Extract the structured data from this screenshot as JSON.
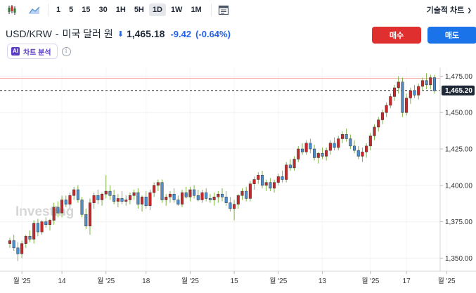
{
  "toolbar": {
    "timeframes": [
      "1",
      "5",
      "15",
      "30",
      "1H",
      "5H",
      "1D",
      "1W",
      "1M"
    ],
    "active_timeframe": "1D",
    "technical_chart_label": "기술적 차트"
  },
  "header": {
    "pair": "USD/KRW",
    "separator": "-",
    "name": "미국 달러 원",
    "price": "1,465.18",
    "change": "-9.42",
    "change_pct": "(-0.64%)",
    "direction": "down"
  },
  "buttons": {
    "buy": "매수",
    "sell": "매도"
  },
  "ai": {
    "badge": "AI",
    "label": "차트 분석"
  },
  "watermark": "Investing",
  "colors": {
    "up": "#c8282a",
    "down": "#4a8fd0",
    "accent_blue": "#2563eb",
    "buy": "#e02f2f",
    "sell": "#1a73e8"
  },
  "chart_data": {
    "type": "candlestick",
    "ylim": [
      1341,
      1481
    ],
    "yticks": [
      1350,
      1375,
      1400,
      1425,
      1450,
      1475
    ],
    "ytick_labels": [
      "1,350.00",
      "1,375.00",
      "1,400.00",
      "1,425.00",
      "1,450.00",
      "1,475.00"
    ],
    "xtick_labels": [
      "월 '25",
      "14",
      "월 '25",
      "18",
      "월 '25",
      "15",
      "월 '25",
      "13",
      "월 '25",
      "17",
      "월 '25"
    ],
    "xtick_index": [
      3,
      13,
      24,
      34,
      45,
      56,
      67,
      78,
      90,
      99,
      109
    ],
    "current_price": 1465.2,
    "current_price_label": "1,465.20",
    "reference_line": 1473.5,
    "candles": [
      [
        1360,
        1364,
        1357,
        1362
      ],
      [
        1362,
        1366,
        1355,
        1357
      ],
      [
        1357,
        1361,
        1348,
        1353
      ],
      [
        1353,
        1362,
        1350,
        1360
      ],
      [
        1360,
        1366,
        1357,
        1365
      ],
      [
        1365,
        1369,
        1361,
        1363
      ],
      [
        1363,
        1376,
        1360,
        1374
      ],
      [
        1374,
        1377,
        1365,
        1368
      ],
      [
        1368,
        1376,
        1366,
        1375
      ],
      [
        1375,
        1378,
        1371,
        1373
      ],
      [
        1373,
        1377,
        1369,
        1376
      ],
      [
        1376,
        1388,
        1373,
        1385
      ],
      [
        1385,
        1389,
        1378,
        1381
      ],
      [
        1381,
        1393,
        1378,
        1390
      ],
      [
        1390,
        1393,
        1385,
        1387
      ],
      [
        1387,
        1395,
        1384,
        1393
      ],
      [
        1393,
        1399,
        1390,
        1397
      ],
      [
        1397,
        1400,
        1388,
        1390
      ],
      [
        1390,
        1392,
        1378,
        1380
      ],
      [
        1380,
        1384,
        1370,
        1372
      ],
      [
        1372,
        1391,
        1366,
        1388
      ],
      [
        1388,
        1395,
        1384,
        1393
      ],
      [
        1393,
        1397,
        1387,
        1390
      ],
      [
        1390,
        1395,
        1386,
        1394
      ],
      [
        1394,
        1407,
        1391,
        1396
      ],
      [
        1396,
        1400,
        1390,
        1393
      ],
      [
        1393,
        1397,
        1387,
        1389
      ],
      [
        1389,
        1394,
        1385,
        1391
      ],
      [
        1391,
        1396,
        1387,
        1389
      ],
      [
        1389,
        1393,
        1386,
        1390
      ],
      [
        1390,
        1395,
        1387,
        1393
      ],
      [
        1393,
        1397,
        1390,
        1395
      ],
      [
        1395,
        1398,
        1384,
        1387
      ],
      [
        1387,
        1393,
        1382,
        1392
      ],
      [
        1392,
        1396,
        1384,
        1386
      ],
      [
        1386,
        1397,
        1383,
        1395
      ],
      [
        1395,
        1402,
        1392,
        1400
      ],
      [
        1400,
        1404,
        1396,
        1402
      ],
      [
        1402,
        1404,
        1388,
        1390
      ],
      [
        1390,
        1394,
        1386,
        1392
      ],
      [
        1392,
        1396,
        1388,
        1394
      ],
      [
        1394,
        1398,
        1388,
        1390
      ],
      [
        1390,
        1393,
        1386,
        1387
      ],
      [
        1387,
        1397,
        1385,
        1395
      ],
      [
        1395,
        1399,
        1391,
        1392
      ],
      [
        1392,
        1399,
        1389,
        1397
      ],
      [
        1397,
        1400,
        1391,
        1393
      ],
      [
        1393,
        1397,
        1389,
        1390
      ],
      [
        1390,
        1397,
        1388,
        1395
      ],
      [
        1395,
        1398,
        1389,
        1391
      ],
      [
        1391,
        1394,
        1388,
        1390
      ],
      [
        1390,
        1395,
        1386,
        1392
      ],
      [
        1392,
        1396,
        1388,
        1394
      ],
      [
        1394,
        1398,
        1389,
        1392
      ],
      [
        1392,
        1396,
        1386,
        1388
      ],
      [
        1388,
        1392,
        1382,
        1384
      ],
      [
        1384,
        1390,
        1376,
        1387
      ],
      [
        1387,
        1394,
        1384,
        1393
      ],
      [
        1393,
        1398,
        1390,
        1396
      ],
      [
        1396,
        1399,
        1389,
        1391
      ],
      [
        1391,
        1403,
        1389,
        1401
      ],
      [
        1401,
        1406,
        1397,
        1404
      ],
      [
        1404,
        1409,
        1401,
        1407
      ],
      [
        1407,
        1410,
        1398,
        1400
      ],
      [
        1400,
        1404,
        1396,
        1402
      ],
      [
        1402,
        1405,
        1396,
        1398
      ],
      [
        1398,
        1404,
        1395,
        1402
      ],
      [
        1402,
        1408,
        1400,
        1406
      ],
      [
        1406,
        1410,
        1402,
        1404
      ],
      [
        1404,
        1416,
        1402,
        1414
      ],
      [
        1414,
        1418,
        1410,
        1412
      ],
      [
        1412,
        1420,
        1410,
        1418
      ],
      [
        1418,
        1427,
        1416,
        1425
      ],
      [
        1425,
        1429,
        1421,
        1423
      ],
      [
        1423,
        1431,
        1421,
        1429
      ],
      [
        1429,
        1432,
        1422,
        1425
      ],
      [
        1425,
        1428,
        1417,
        1419
      ],
      [
        1419,
        1423,
        1415,
        1422
      ],
      [
        1422,
        1426,
        1418,
        1420
      ],
      [
        1420,
        1426,
        1417,
        1424
      ],
      [
        1424,
        1431,
        1421,
        1429
      ],
      [
        1429,
        1433,
        1424,
        1426
      ],
      [
        1426,
        1434,
        1424,
        1432
      ],
      [
        1432,
        1437,
        1429,
        1435
      ],
      [
        1435,
        1439,
        1430,
        1432
      ],
      [
        1432,
        1435,
        1425,
        1427
      ],
      [
        1427,
        1431,
        1422,
        1424
      ],
      [
        1424,
        1427,
        1418,
        1420
      ],
      [
        1420,
        1426,
        1416,
        1423
      ],
      [
        1423,
        1429,
        1419,
        1427
      ],
      [
        1427,
        1436,
        1424,
        1434
      ],
      [
        1434,
        1442,
        1431,
        1440
      ],
      [
        1440,
        1447,
        1437,
        1445
      ],
      [
        1445,
        1452,
        1442,
        1450
      ],
      [
        1450,
        1457,
        1447,
        1455
      ],
      [
        1455,
        1463,
        1453,
        1461
      ],
      [
        1461,
        1469,
        1458,
        1467
      ],
      [
        1467,
        1475,
        1463,
        1471
      ],
      [
        1471,
        1474,
        1447,
        1450
      ],
      [
        1450,
        1463,
        1448,
        1460
      ],
      [
        1460,
        1467,
        1456,
        1465
      ],
      [
        1465,
        1469,
        1460,
        1462
      ],
      [
        1462,
        1470,
        1459,
        1468
      ],
      [
        1468,
        1474,
        1465,
        1472
      ],
      [
        1472,
        1477,
        1466,
        1469
      ],
      [
        1469,
        1476,
        1466,
        1474
      ],
      [
        1474,
        1476,
        1463,
        1465
      ]
    ]
  }
}
